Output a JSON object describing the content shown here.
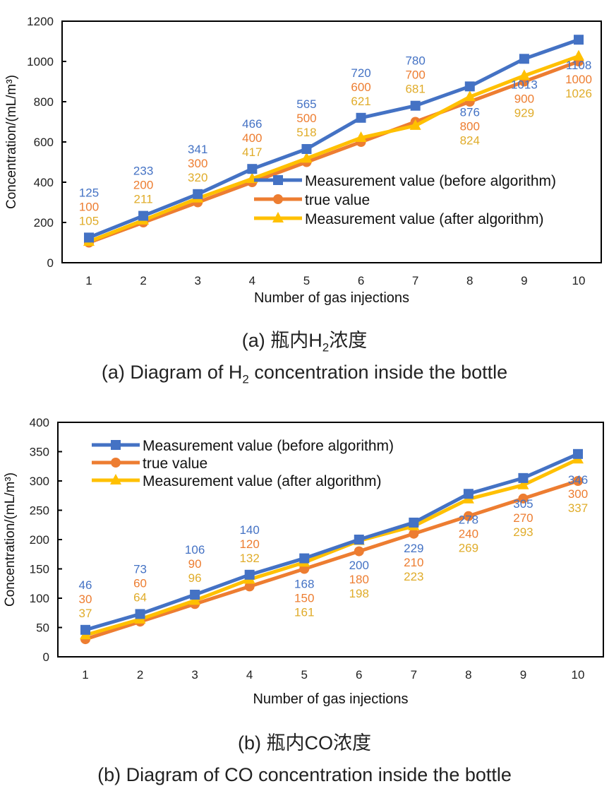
{
  "colors": {
    "before": "#4472C4",
    "true": "#ED7D31",
    "after": "#FFC000",
    "after_label": "#E0AC2A",
    "axis": "#000000"
  },
  "captions": {
    "a_cn_prefix": "(a) 瓶内",
    "a_cn_sym": "H",
    "a_cn_sub": "2",
    "a_cn_suffix": "浓度",
    "a_en_prefix": "(a) Diagram of H",
    "a_en_sub": "2",
    "a_en_suffix": " concentration inside the bottle",
    "b_cn": "(b) 瓶内CO浓度",
    "b_en": "(b) Diagram of CO concentration inside the bottle"
  },
  "chart_data": [
    {
      "type": "line",
      "title": "H2 concentration inside the bottle",
      "xlabel": "Number of gas injections",
      "ylabel": "Concentration/(mL/m³)",
      "x": [
        1,
        2,
        3,
        4,
        5,
        6,
        7,
        8,
        9,
        10
      ],
      "ylim": [
        0,
        1200
      ],
      "yticks": [
        0,
        200,
        400,
        600,
        800,
        1000,
        1200
      ],
      "legend_position": "lower-right",
      "series": [
        {
          "name": "Measurement value (before algorithm)",
          "key": "before",
          "marker": "square",
          "values": [
            125,
            233,
            341,
            466,
            565,
            720,
            780,
            876,
            1013,
            1108
          ]
        },
        {
          "name": "true value",
          "key": "true",
          "marker": "circle",
          "values": [
            100,
            200,
            300,
            400,
            500,
            600,
            700,
            800,
            900,
            1000
          ]
        },
        {
          "name": "Measurement value (after algorithm)",
          "key": "after",
          "marker": "triangle",
          "values": [
            105,
            211,
            320,
            417,
            518,
            621,
            681,
            824,
            929,
            1026
          ]
        }
      ]
    },
    {
      "type": "line",
      "title": "CO concentration inside the bottle",
      "xlabel": "Number of gas injections",
      "ylabel": "Concentration/(mL/m³)",
      "x": [
        1,
        2,
        3,
        4,
        5,
        6,
        7,
        8,
        9,
        10
      ],
      "ylim": [
        0,
        400
      ],
      "yticks": [
        0,
        50,
        100,
        150,
        200,
        250,
        300,
        350,
        400
      ],
      "legend_position": "top-left",
      "series": [
        {
          "name": "Measurement value (before algorithm)",
          "key": "before",
          "marker": "square",
          "values": [
            46,
            73,
            106,
            140,
            168,
            200,
            229,
            278,
            305,
            346
          ]
        },
        {
          "name": "true value",
          "key": "true",
          "marker": "circle",
          "values": [
            30,
            60,
            90,
            120,
            150,
            180,
            210,
            240,
            270,
            300
          ]
        },
        {
          "name": "Measurement value (after algorithm)",
          "key": "after",
          "marker": "triangle",
          "values": [
            37,
            64,
            96,
            132,
            161,
            198,
            223,
            269,
            293,
            337
          ]
        }
      ]
    }
  ]
}
